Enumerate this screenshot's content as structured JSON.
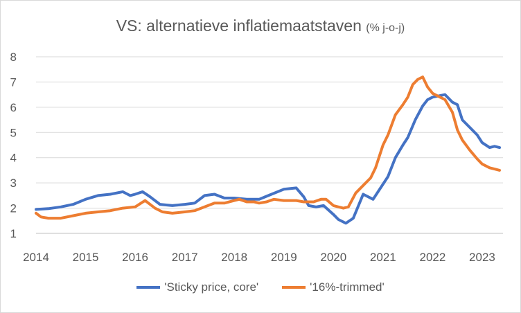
{
  "chart_data": {
    "type": "line",
    "title": "VS: alternatieve inflatiemaatstaven",
    "subtitle": "(% j-o-j)",
    "xlabel": "",
    "ylabel": "",
    "xlim": [
      2014.0,
      2023.42
    ],
    "ylim": [
      1,
      8
    ],
    "x_ticks": [
      2014,
      2015,
      2016,
      2017,
      2018,
      2019,
      2020,
      2021,
      2022,
      2023
    ],
    "y_ticks": [
      1,
      2,
      3,
      4,
      5,
      6,
      7,
      8
    ],
    "grid": "horizontal",
    "legend_position": "bottom",
    "series": [
      {
        "name": "'Sticky price, core'",
        "color": "#4472c4",
        "points": [
          [
            2014.0,
            1.95
          ],
          [
            2014.25,
            1.98
          ],
          [
            2014.5,
            2.05
          ],
          [
            2014.75,
            2.15
          ],
          [
            2015.0,
            2.35
          ],
          [
            2015.25,
            2.5
          ],
          [
            2015.5,
            2.55
          ],
          [
            2015.75,
            2.65
          ],
          [
            2015.9,
            2.5
          ],
          [
            2016.0,
            2.55
          ],
          [
            2016.15,
            2.65
          ],
          [
            2016.3,
            2.45
          ],
          [
            2016.5,
            2.15
          ],
          [
            2016.75,
            2.1
          ],
          [
            2017.0,
            2.15
          ],
          [
            2017.2,
            2.2
          ],
          [
            2017.4,
            2.5
          ],
          [
            2017.6,
            2.55
          ],
          [
            2017.8,
            2.4
          ],
          [
            2018.0,
            2.4
          ],
          [
            2018.25,
            2.35
          ],
          [
            2018.5,
            2.35
          ],
          [
            2018.75,
            2.55
          ],
          [
            2019.0,
            2.75
          ],
          [
            2019.25,
            2.8
          ],
          [
            2019.4,
            2.45
          ],
          [
            2019.5,
            2.1
          ],
          [
            2019.65,
            2.05
          ],
          [
            2019.8,
            2.1
          ],
          [
            2020.0,
            1.75
          ],
          [
            2020.1,
            1.55
          ],
          [
            2020.25,
            1.4
          ],
          [
            2020.4,
            1.6
          ],
          [
            2020.6,
            2.55
          ],
          [
            2020.8,
            2.35
          ],
          [
            2021.0,
            2.95
          ],
          [
            2021.1,
            3.25
          ],
          [
            2021.25,
            4.0
          ],
          [
            2021.4,
            4.5
          ],
          [
            2021.5,
            4.8
          ],
          [
            2021.65,
            5.5
          ],
          [
            2021.8,
            6.05
          ],
          [
            2021.9,
            6.3
          ],
          [
            2022.0,
            6.4
          ],
          [
            2022.25,
            6.5
          ],
          [
            2022.4,
            6.2
          ],
          [
            2022.5,
            6.1
          ],
          [
            2022.6,
            5.5
          ],
          [
            2022.75,
            5.2
          ],
          [
            2022.9,
            4.9
          ],
          [
            2023.0,
            4.6
          ],
          [
            2023.15,
            4.4
          ],
          [
            2023.25,
            4.45
          ],
          [
            2023.35,
            4.4
          ]
        ]
      },
      {
        "name": "'16%-trimmed'",
        "color": "#ed7d31",
        "points": [
          [
            2014.0,
            1.8
          ],
          [
            2014.1,
            1.65
          ],
          [
            2014.25,
            1.6
          ],
          [
            2014.5,
            1.6
          ],
          [
            2014.75,
            1.7
          ],
          [
            2015.0,
            1.8
          ],
          [
            2015.25,
            1.85
          ],
          [
            2015.5,
            1.9
          ],
          [
            2015.75,
            2.0
          ],
          [
            2016.0,
            2.05
          ],
          [
            2016.2,
            2.3
          ],
          [
            2016.4,
            2.0
          ],
          [
            2016.55,
            1.85
          ],
          [
            2016.75,
            1.8
          ],
          [
            2017.0,
            1.85
          ],
          [
            2017.2,
            1.9
          ],
          [
            2017.4,
            2.05
          ],
          [
            2017.6,
            2.2
          ],
          [
            2017.8,
            2.2
          ],
          [
            2018.0,
            2.3
          ],
          [
            2018.1,
            2.35
          ],
          [
            2018.25,
            2.25
          ],
          [
            2018.4,
            2.25
          ],
          [
            2018.5,
            2.2
          ],
          [
            2018.65,
            2.25
          ],
          [
            2018.8,
            2.35
          ],
          [
            2019.0,
            2.3
          ],
          [
            2019.25,
            2.3
          ],
          [
            2019.4,
            2.25
          ],
          [
            2019.6,
            2.25
          ],
          [
            2019.75,
            2.35
          ],
          [
            2019.85,
            2.35
          ],
          [
            2020.0,
            2.1
          ],
          [
            2020.1,
            2.05
          ],
          [
            2020.2,
            2.0
          ],
          [
            2020.3,
            2.05
          ],
          [
            2020.45,
            2.6
          ],
          [
            2020.6,
            2.9
          ],
          [
            2020.75,
            3.2
          ],
          [
            2020.85,
            3.6
          ],
          [
            2021.0,
            4.5
          ],
          [
            2021.1,
            4.9
          ],
          [
            2021.25,
            5.7
          ],
          [
            2021.4,
            6.1
          ],
          [
            2021.5,
            6.4
          ],
          [
            2021.6,
            6.9
          ],
          [
            2021.7,
            7.1
          ],
          [
            2021.8,
            7.2
          ],
          [
            2021.9,
            6.8
          ],
          [
            2022.0,
            6.55
          ],
          [
            2022.25,
            6.3
          ],
          [
            2022.4,
            5.8
          ],
          [
            2022.5,
            5.1
          ],
          [
            2022.6,
            4.7
          ],
          [
            2022.75,
            4.3
          ],
          [
            2022.9,
            3.95
          ],
          [
            2023.0,
            3.75
          ],
          [
            2023.15,
            3.6
          ],
          [
            2023.25,
            3.55
          ],
          [
            2023.35,
            3.5
          ]
        ]
      }
    ]
  }
}
